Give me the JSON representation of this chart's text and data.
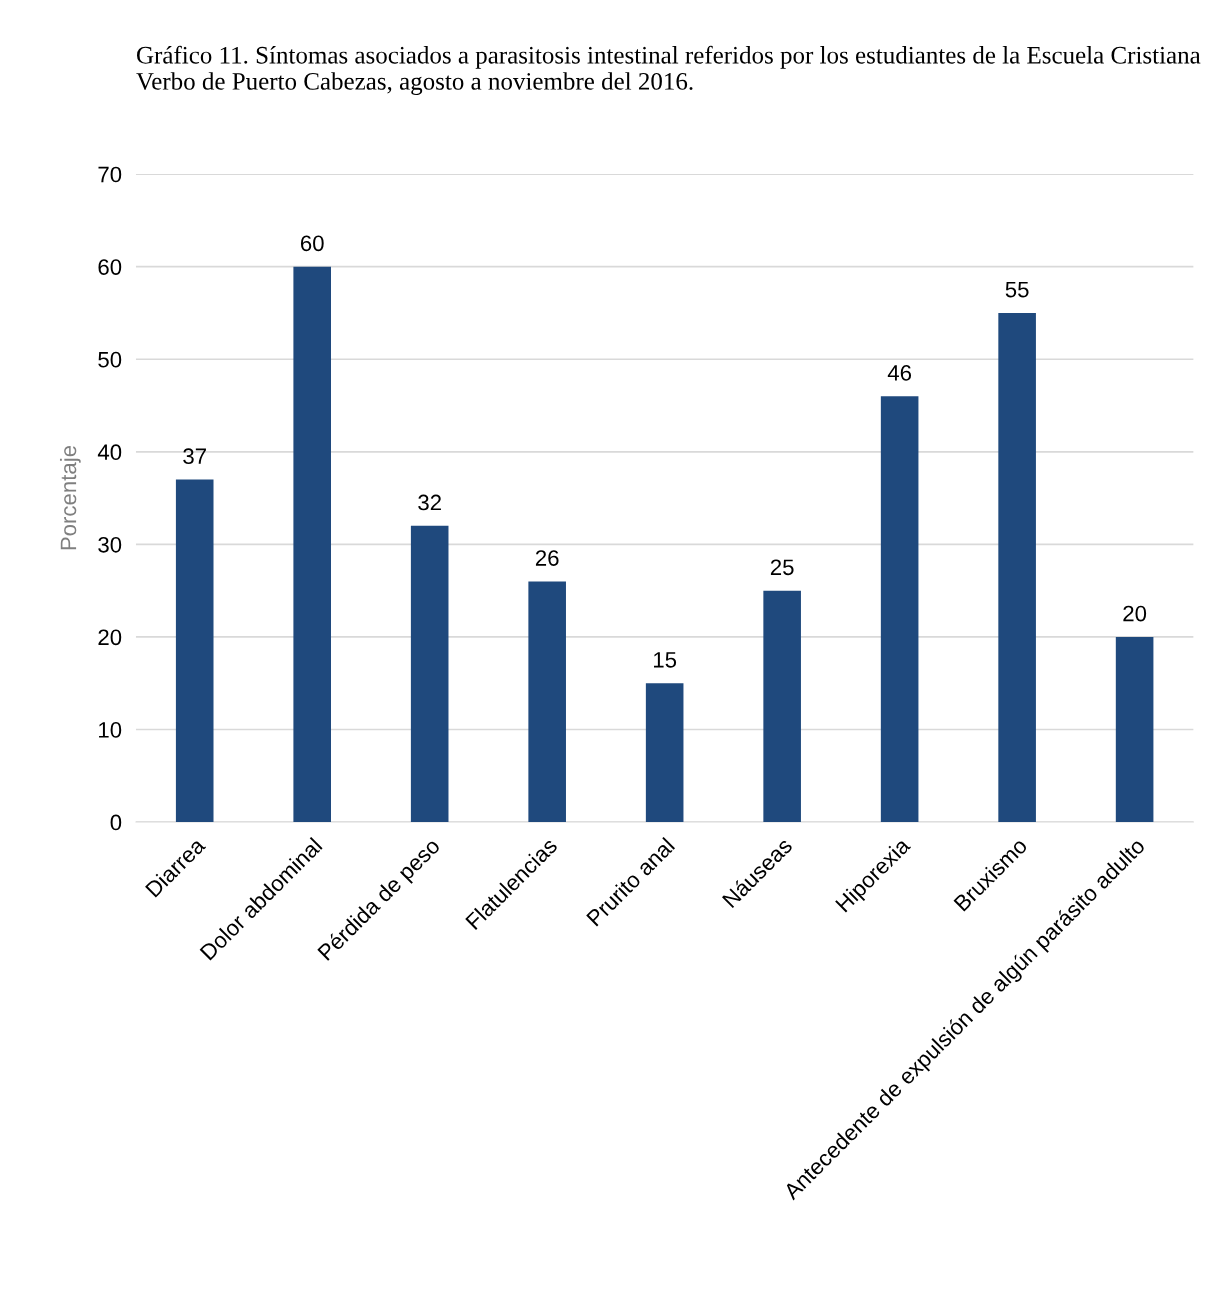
{
  "chart_data": {
    "type": "bar",
    "title": "Gráfico 11. Síntomas asociados a parasitosis intestinal referidos por los estudiantes de la Escuela Cristiana Verbo de Puerto Cabezas, agosto a noviembre del 2016.",
    "ylabel": "Porcentaje",
    "categories": [
      "Diarrea",
      "Dolor abdominal",
      "Pérdida de peso",
      "Flatulencias",
      "Prurito anal",
      "Náuseas",
      "Hiporexia",
      "Bruxismo",
      "Antecedente de expulsión de algún parásito adulto"
    ],
    "values": [
      37,
      60,
      32,
      26,
      15,
      25,
      46,
      55,
      20
    ],
    "color": "#1f497d",
    "ylim": [
      0,
      70
    ],
    "yticks": [
      0,
      10,
      20,
      30,
      40,
      50,
      60,
      70
    ],
    "grid": "y",
    "data_labels": true
  }
}
